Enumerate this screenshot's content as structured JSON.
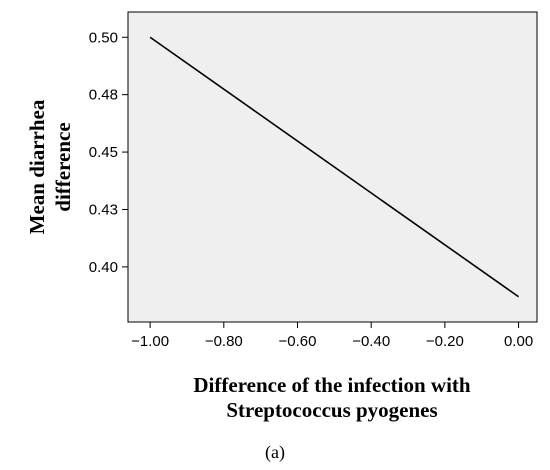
{
  "chart_data": {
    "type": "line",
    "x": [
      -1.0,
      0.0
    ],
    "series": [
      {
        "values": [
          0.5,
          0.387
        ]
      }
    ],
    "xlabel_lines": [
      "Difference of the infection with",
      "Streptococcus pyogenes"
    ],
    "ylabel_lines": [
      "Mean diarrhea",
      "difference"
    ],
    "xticks": [
      -1.0,
      -0.8,
      -0.6,
      -0.4,
      -0.2,
      0.0
    ],
    "xtick_labels": [
      "−1.00",
      "−0.80",
      "−0.60",
      "−0.40",
      "−0.20",
      "0.00"
    ],
    "yticks": [
      0.4,
      0.425,
      0.45,
      0.475,
      0.5
    ],
    "ytick_labels": [
      "0.40",
      "0.43",
      "0.45",
      "0.48",
      "0.50"
    ],
    "xlim": [
      -1.06,
      0.05
    ],
    "ylim": [
      0.376,
      0.511
    ],
    "grid": false,
    "legend": "none",
    "line_color": "#000000",
    "plot_background": "#efefef"
  },
  "caption": "(a)"
}
